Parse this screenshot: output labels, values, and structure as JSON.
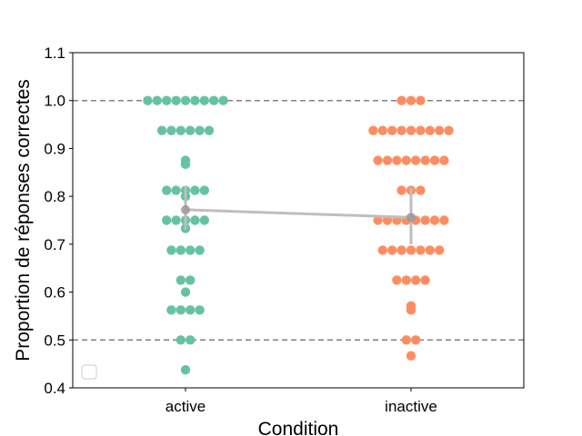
{
  "chart_data": {
    "type": "scatter",
    "subtype": "swarm",
    "title": "",
    "xlabel": "Condition",
    "ylabel": "Proportion de réponses correctes",
    "categories": [
      "active",
      "inactive"
    ],
    "ylim": [
      0.4,
      1.1
    ],
    "yticks": [
      "0.4",
      "0.5",
      "0.6",
      "0.7",
      "0.8",
      "0.9",
      "1.0",
      "1.1"
    ],
    "reference_lines": [
      {
        "y": 1.0,
        "style": "dashed",
        "color": "#808080"
      },
      {
        "y": 0.5,
        "style": "dashed",
        "color": "#808080"
      }
    ],
    "grid": false,
    "legend": {
      "placement": "lower-left",
      "entries": []
    },
    "series": [
      {
        "category": "active",
        "color": "#66c2a5",
        "values": [
          1.0,
          1.0,
          1.0,
          1.0,
          1.0,
          1.0,
          1.0,
          1.0,
          1.0,
          0.9375,
          0.9375,
          0.9375,
          0.9375,
          0.9375,
          0.9375,
          0.875,
          0.867,
          0.8125,
          0.8125,
          0.8125,
          0.8125,
          0.8125,
          0.8,
          0.75,
          0.75,
          0.75,
          0.75,
          0.75,
          0.733,
          0.6875,
          0.6875,
          0.6875,
          0.6875,
          0.625,
          0.625,
          0.6,
          0.5625,
          0.5625,
          0.5625,
          0.5625,
          0.5,
          0.5,
          0.4375
        ]
      },
      {
        "category": "inactive",
        "color": "#fc8d62",
        "values": [
          1.0,
          1.0,
          1.0,
          0.9375,
          0.9375,
          0.9375,
          0.9375,
          0.9375,
          0.9375,
          0.9375,
          0.9375,
          0.9375,
          0.875,
          0.875,
          0.875,
          0.875,
          0.875,
          0.875,
          0.875,
          0.875,
          0.8125,
          0.8125,
          0.8125,
          0.75,
          0.75,
          0.75,
          0.75,
          0.75,
          0.75,
          0.75,
          0.75,
          0.6875,
          0.6875,
          0.6875,
          0.6875,
          0.6875,
          0.6875,
          0.6875,
          0.625,
          0.625,
          0.625,
          0.625,
          0.571,
          0.5625,
          0.5,
          0.5,
          0.467
        ]
      }
    ],
    "point_estimates": {
      "color": "#bebebe",
      "marker_color": "#999999",
      "values": [
        {
          "category": "active",
          "mean": 0.772,
          "ci": [
            0.73,
            0.822
          ]
        },
        {
          "category": "inactive",
          "mean": 0.756,
          "ci": [
            0.7,
            0.818
          ]
        }
      ]
    }
  }
}
